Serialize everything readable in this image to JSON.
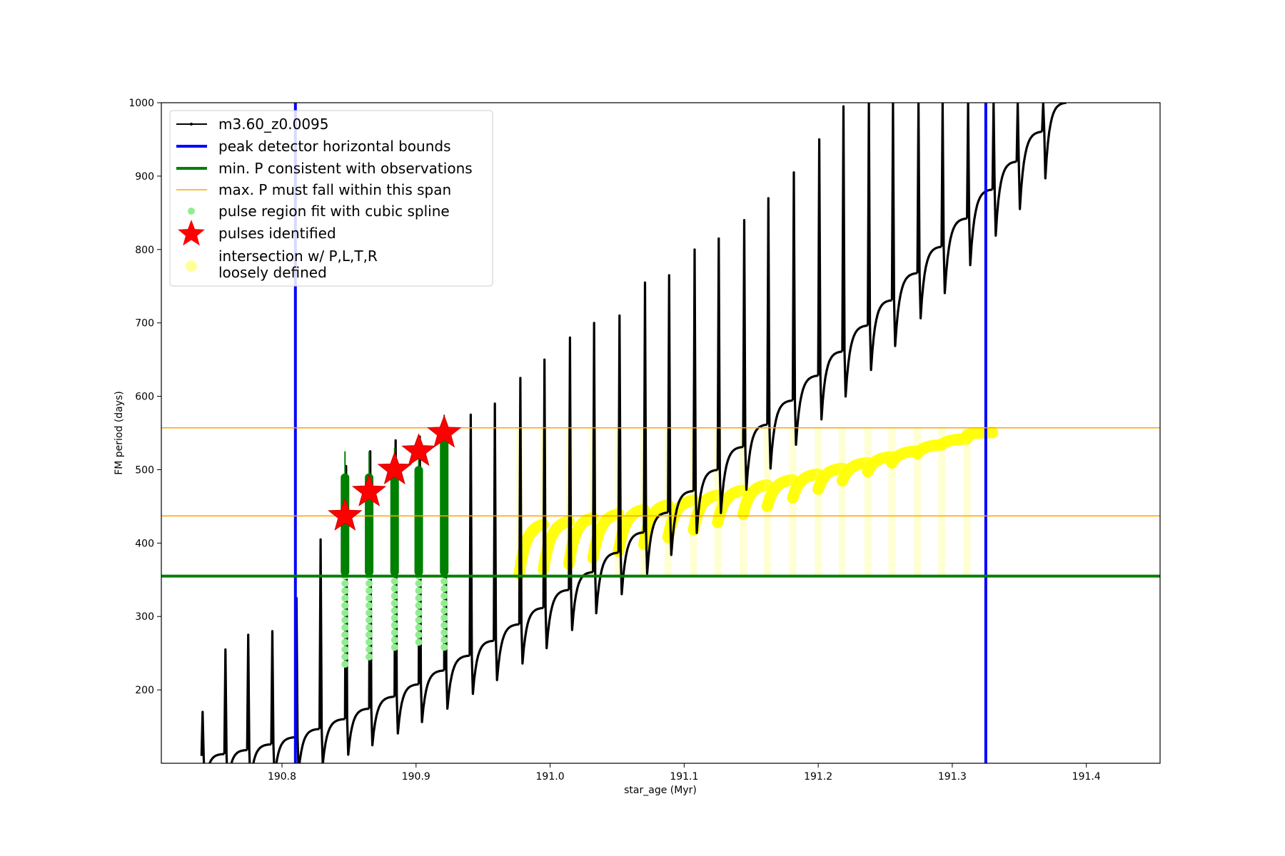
{
  "chart_data": {
    "type": "scatter",
    "title": "",
    "xlabel": "star_age (Myr)",
    "ylabel": "FM period (days)",
    "xlim": [
      190.71,
      191.455
    ],
    "ylim": [
      100,
      1000
    ],
    "xticks": [
      190.8,
      190.9,
      191.0,
      191.1,
      191.2,
      191.3,
      191.4
    ],
    "xtick_labels": [
      "190.8",
      "190.9",
      "191.0",
      "191.1",
      "191.2",
      "191.3",
      "191.4"
    ],
    "yticks": [
      200,
      300,
      400,
      500,
      600,
      700,
      800,
      900,
      1000
    ],
    "ytick_labels": [
      "200",
      "300",
      "400",
      "500",
      "600",
      "700",
      "800",
      "900",
      "1000"
    ],
    "grid": false,
    "legend_position": "top-left",
    "colors": {
      "track": "#000000",
      "bounds": "#0000ff",
      "min_p": "#008000",
      "max_p_span": "#ffa500",
      "spline": "#90ee90",
      "pulses": "#ff0000",
      "intersection": "#ffff00"
    },
    "series": [
      {
        "name": "m3.60_z0.0095",
        "kind": "track",
        "x_start": 190.74,
        "x_end": 191.385,
        "period_start": 110,
        "period_end": 1000,
        "spike_ages": [
          190.74,
          190.757,
          190.774,
          190.792,
          190.81,
          190.828,
          190.847,
          190.865,
          190.884,
          190.902,
          190.921,
          190.94,
          190.958,
          190.977,
          190.995,
          191.014,
          191.032,
          191.051,
          191.07,
          191.088,
          191.107,
          191.125,
          191.144,
          191.162,
          191.181,
          191.2,
          191.218,
          191.237,
          191.255,
          191.274,
          191.292,
          191.311,
          191.33,
          191.348,
          191.367
        ],
        "spike_peaks": [
          170,
          255,
          275,
          280,
          325,
          405,
          505,
          525,
          540,
          545,
          560,
          575,
          590,
          625,
          650,
          680,
          700,
          710,
          755,
          765,
          800,
          815,
          840,
          870,
          905,
          950,
          995,
          1000,
          1000,
          1000,
          1000,
          1000,
          1000,
          1000,
          1000
        ]
      },
      {
        "name": "peak detector horizontal bounds",
        "kind": "vline",
        "x": [
          190.81,
          191.325
        ]
      },
      {
        "name": "min. P consistent with observations",
        "kind": "hline",
        "y": 355
      },
      {
        "name": "max. P must fall within this span",
        "kind": "hline",
        "y": [
          437,
          557
        ]
      },
      {
        "name": "pulse region fit with cubic spline",
        "kind": "points",
        "x": [
          190.847,
          190.865,
          190.884,
          190.902,
          190.921
        ],
        "y_low": [
          235,
          245,
          258,
          265,
          258
        ],
        "y_high": [
          495,
          495,
          500,
          505,
          545
        ]
      },
      {
        "name": "pulses identified",
        "kind": "stars",
        "x": [
          190.847,
          190.865,
          190.884,
          190.902,
          190.921
        ],
        "y": [
          437,
          470,
          500,
          525,
          550
        ]
      },
      {
        "name": "intersection w/ P,L,T,R\nloosely defined",
        "kind": "band",
        "x_start": 190.965,
        "x_end": 191.325,
        "y_low_start": 355,
        "y_low_end": 557,
        "y_high": 557
      }
    ],
    "legend": [
      {
        "label": "m3.60_z0.0095",
        "style": "line-dot",
        "color": "#000000"
      },
      {
        "label": "peak detector horizontal bounds",
        "style": "line-thick",
        "color": "#0000ff"
      },
      {
        "label": "min. P consistent with observations",
        "style": "line-thick",
        "color": "#008000"
      },
      {
        "label": "max. P must fall within this span",
        "style": "line-thin",
        "color": "#ffa500"
      },
      {
        "label": "pulse region fit with cubic spline",
        "style": "dot",
        "color": "#90ee90"
      },
      {
        "label": "pulses identified",
        "style": "star",
        "color": "#ff0000"
      },
      {
        "label": "intersection w/ P,L,T,R",
        "label2": "loosely defined",
        "style": "bigdot",
        "color": "#ffff99"
      }
    ]
  }
}
